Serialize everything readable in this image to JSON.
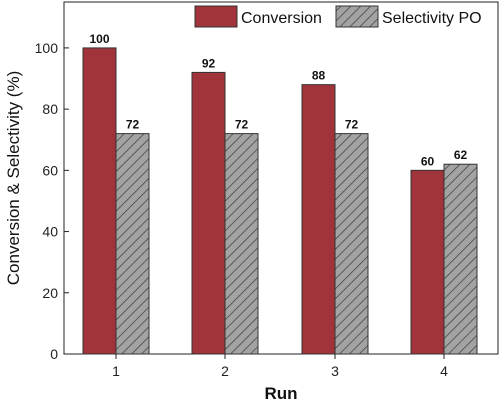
{
  "chart_data": {
    "type": "bar",
    "categories": [
      "1",
      "2",
      "3",
      "4"
    ],
    "series": [
      {
        "name": "Conversion",
        "values": [
          100,
          92,
          88,
          60
        ],
        "color": "#a1343a",
        "pattern": "solid"
      },
      {
        "name": "Selectivity PO",
        "values": [
          72,
          72,
          72,
          62
        ],
        "color": "#9b9b9b",
        "pattern": "hatched"
      }
    ],
    "xlabel": "Run",
    "ylabel": "Conversion & Selectivity (%)",
    "ylim": [
      0,
      115
    ],
    "yticks": [
      0,
      20,
      40,
      60,
      80,
      100
    ],
    "legend_position": "top-right",
    "grid": false
  }
}
